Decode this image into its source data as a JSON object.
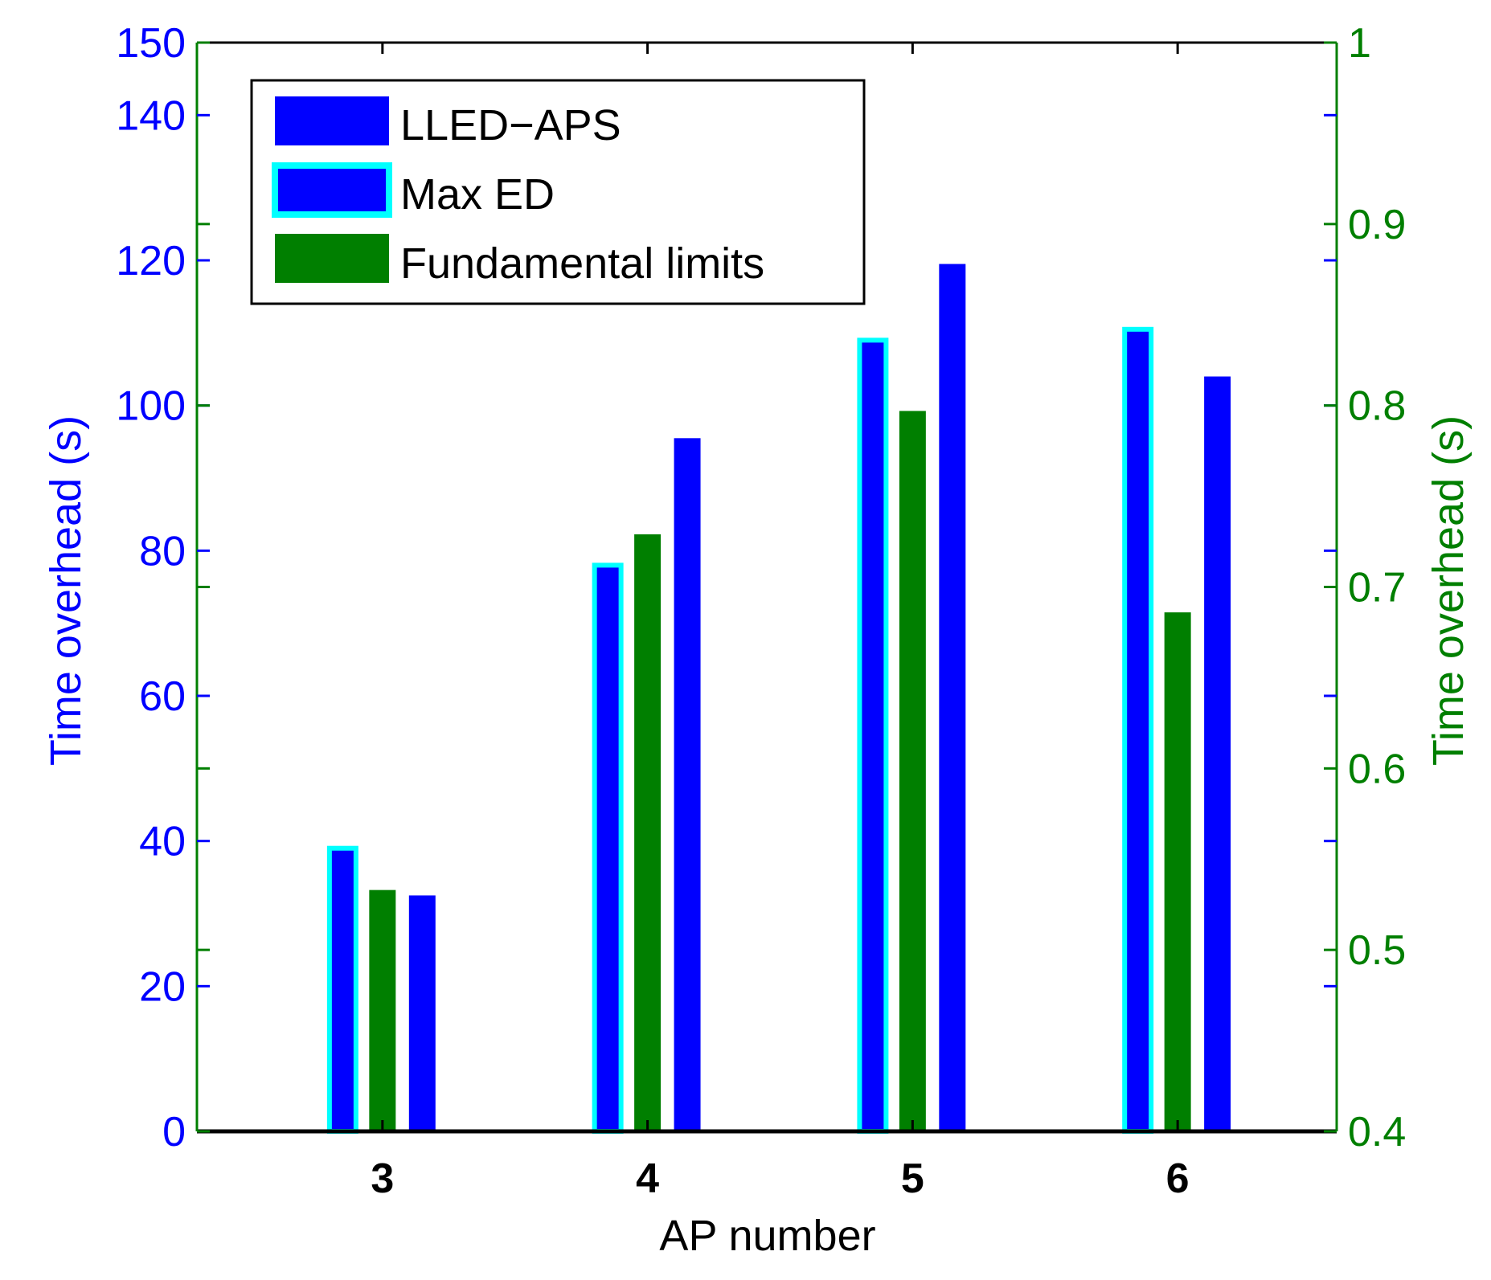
{
  "chart_data": {
    "type": "bar",
    "categories": [
      "3",
      "4",
      "5",
      "6"
    ],
    "xlabel": "AP number",
    "ylabel_left": "Time overhead (s)",
    "ylabel_right": "Time overhead (s)",
    "ylim_left": [
      0,
      150
    ],
    "ylim_right": [
      0.4,
      1.0
    ],
    "yticks_left": [
      "0",
      "20",
      "40",
      "60",
      "80",
      "100",
      "120",
      "140",
      "150"
    ],
    "yticks_right": [
      "0.4",
      "0.5",
      "0.6",
      "0.7",
      "0.8",
      "0.9",
      "1"
    ],
    "legend_position": "top-left",
    "series": [
      {
        "name": "Max ED",
        "axis": "left",
        "values": [
          39,
          78,
          109,
          110.5
        ],
        "color": "#0000ff",
        "edge": "#00ffff"
      },
      {
        "name": "Fundamental limits",
        "axis": "right",
        "values": [
          0.533,
          0.729,
          0.797,
          0.686
        ],
        "color": "#007f00"
      },
      {
        "name": "LLED−APS",
        "axis": "left",
        "values": [
          32.5,
          95.5,
          119.5,
          104
        ],
        "color": "#0000ff"
      }
    ],
    "legend": [
      "LLED−APS",
      "Max ED",
      "Fundamental limits"
    ],
    "colors": {
      "left_axis": "#0000ff",
      "right_axis": "#007f00",
      "frame": "#000000"
    }
  }
}
